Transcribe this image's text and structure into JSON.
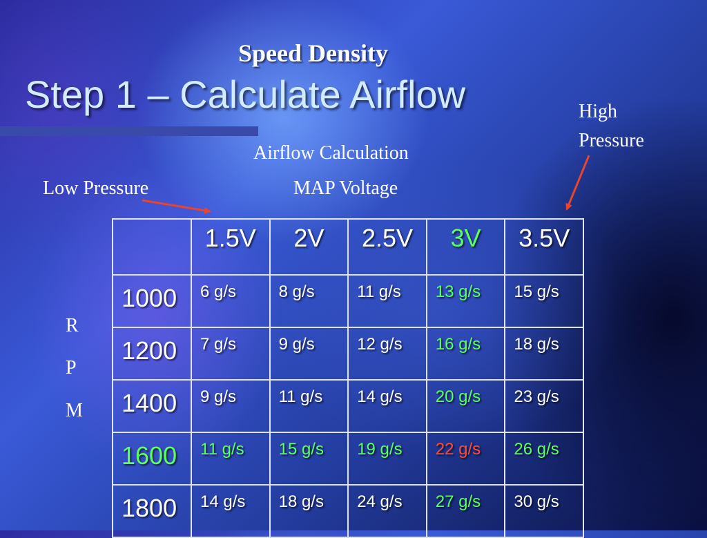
{
  "slide": {
    "subtitle": "Speed Density",
    "title": "Step 1 – Calculate Airflow"
  },
  "labels": {
    "high_pressure_line1": "High",
    "high_pressure_line2": "Pressure",
    "airflow_calculation": "Airflow Calculation",
    "map_voltage": "MAP Voltage",
    "low_pressure": "Low Pressure",
    "rpm_letters": [
      "R",
      "P",
      "M"
    ]
  },
  "colors": {
    "highlight_green": "#5cff5c",
    "highlight_red": "#ff4a3a",
    "arrow": "#e8452a"
  },
  "table": {
    "headers": [
      "",
      "1.5V",
      "2V",
      "2.5V",
      "3V",
      "3.5V"
    ],
    "rows": [
      {
        "rpm": "1000",
        "cells": [
          "6 g/s",
          "8 g/s",
          "11 g/s",
          "13 g/s",
          "15 g/s"
        ]
      },
      {
        "rpm": "1200",
        "cells": [
          "7 g/s",
          "9 g/s",
          "12 g/s",
          "16 g/s",
          "18 g/s"
        ]
      },
      {
        "rpm": "1400",
        "cells": [
          "9 g/s",
          "11 g/s",
          "14 g/s",
          "20 g/s",
          "23 g/s"
        ]
      },
      {
        "rpm": "1600",
        "cells": [
          "11 g/s",
          "15 g/s",
          "19 g/s",
          "22 g/s",
          "26 g/s"
        ]
      },
      {
        "rpm": "1800",
        "cells": [
          "14 g/s",
          "18 g/s",
          "24 g/s",
          "27 g/s",
          "30 g/s"
        ]
      }
    ]
  }
}
